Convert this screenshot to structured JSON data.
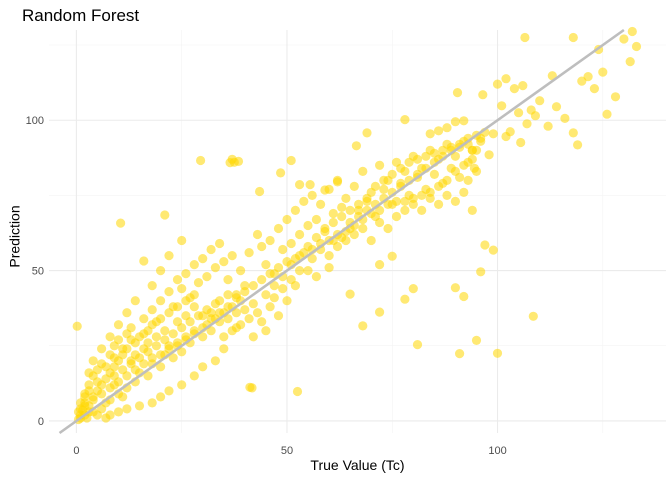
{
  "chart_data": {
    "type": "scatter",
    "title": "Random Forest",
    "xlabel": "True Value (Tc)",
    "ylabel": "Prediction",
    "xlim": [
      -6.5,
      140
    ],
    "ylim": [
      -4,
      130
    ],
    "xticks": [
      0,
      50,
      100
    ],
    "yticks": [
      0,
      50,
      100
    ],
    "grid": true,
    "point_color": "#FFD700",
    "line_color": "#BEBEBE",
    "reference_line": {
      "slope": 1,
      "intercept": 0
    },
    "points": [
      [
        0.2,
        31.5
      ],
      [
        10.5,
        65.8
      ],
      [
        21,
        68.5
      ],
      [
        16,
        53.2
      ],
      [
        29.5,
        86.6
      ],
      [
        36.5,
        85.9
      ],
      [
        37.5,
        86.0
      ],
      [
        38.5,
        86.3
      ],
      [
        37,
        87.0
      ],
      [
        41.7,
        11.0
      ],
      [
        41.2,
        11.2
      ],
      [
        52.5,
        9.8
      ],
      [
        48.5,
        82.5
      ],
      [
        43.5,
        76.3
      ],
      [
        51,
        86.6
      ],
      [
        53,
        78.6
      ],
      [
        55.5,
        78.6
      ],
      [
        59,
        76.8
      ],
      [
        66.5,
        91.5
      ],
      [
        78,
        100.2
      ],
      [
        69,
        95.8
      ],
      [
        62,
        79.5
      ],
      [
        84,
        95.5
      ],
      [
        88,
        97.5
      ],
      [
        90,
        99.5
      ],
      [
        92,
        99.8
      ],
      [
        86,
        96.5
      ],
      [
        81,
        25.4
      ],
      [
        91,
        22.4
      ],
      [
        95,
        26.8
      ],
      [
        90,
        44.3
      ],
      [
        92,
        41.4
      ],
      [
        96,
        49.6
      ],
      [
        97,
        58.5
      ],
      [
        99,
        56.8
      ],
      [
        72,
        52.0
      ],
      [
        60,
        51.0
      ],
      [
        75,
        54.8
      ],
      [
        65,
        42.2
      ],
      [
        72,
        36.2
      ],
      [
        68,
        31.6
      ],
      [
        78,
        40.5
      ],
      [
        80,
        44.0
      ],
      [
        90.5,
        109.2
      ],
      [
        96.5,
        108.5
      ],
      [
        101,
        104.8
      ],
      [
        104,
        110.5
      ],
      [
        106,
        111.5
      ],
      [
        106.5,
        127.5
      ],
      [
        105.5,
        92.6
      ],
      [
        103,
        96.2
      ],
      [
        108,
        103.4
      ],
      [
        110,
        106.5
      ],
      [
        112,
        98.0
      ],
      [
        113,
        114.8
      ],
      [
        114,
        104.5
      ],
      [
        116,
        100.6
      ],
      [
        118,
        95.8
      ],
      [
        119,
        91.8
      ],
      [
        120,
        113.0
      ],
      [
        121.5,
        114.5
      ],
      [
        123,
        110.5
      ],
      [
        124,
        123.5
      ],
      [
        125,
        116.0
      ],
      [
        126,
        102.0
      ],
      [
        128,
        107.8
      ],
      [
        118,
        127.5
      ],
      [
        130,
        127.0
      ],
      [
        132,
        129.5
      ],
      [
        133,
        124.5
      ],
      [
        131.5,
        119.5
      ],
      [
        108.5,
        34.8
      ],
      [
        100,
        22.5
      ],
      [
        94.5,
        84.0
      ],
      [
        96,
        93.0
      ],
      [
        99,
        95.5
      ],
      [
        102,
        94.6
      ],
      [
        105,
        102.5
      ],
      [
        107,
        98.8
      ],
      [
        109,
        101.5
      ],
      [
        100,
        112.0
      ],
      [
        102,
        113.8
      ],
      [
        98,
        88.5
      ],
      [
        94,
        90.0
      ],
      [
        93,
        80.0
      ],
      [
        5,
        2
      ],
      [
        6,
        4
      ],
      [
        8,
        7
      ],
      [
        10,
        9
      ],
      [
        12,
        11
      ],
      [
        3,
        5
      ],
      [
        4,
        3
      ],
      [
        7,
        6
      ],
      [
        9,
        12
      ],
      [
        11,
        8
      ],
      [
        14,
        13
      ],
      [
        15,
        16
      ],
      [
        17,
        15
      ],
      [
        18,
        19
      ],
      [
        20,
        18
      ],
      [
        21,
        22
      ],
      [
        23,
        21
      ],
      [
        24,
        25
      ],
      [
        25,
        23
      ],
      [
        26,
        27
      ],
      [
        27,
        26
      ],
      [
        28,
        29
      ],
      [
        30,
        28
      ],
      [
        31,
        32
      ],
      [
        32,
        30
      ],
      [
        33,
        34
      ],
      [
        34,
        33
      ],
      [
        35,
        36
      ],
      [
        36,
        34
      ],
      [
        37,
        38
      ],
      [
        38,
        36
      ],
      [
        39,
        40
      ],
      [
        40,
        37
      ],
      [
        2,
        8
      ],
      [
        3,
        12
      ],
      [
        4,
        15
      ],
      [
        5,
        17
      ],
      [
        6,
        19
      ],
      [
        8,
        22
      ],
      [
        9,
        25
      ],
      [
        10,
        27
      ],
      [
        12,
        29
      ],
      [
        13,
        31
      ],
      [
        14,
        26
      ],
      [
        16,
        34
      ],
      [
        17,
        30
      ],
      [
        18,
        37
      ],
      [
        19,
        33
      ],
      [
        20,
        40
      ],
      [
        22,
        43
      ],
      [
        23,
        38
      ],
      [
        24,
        47
      ],
      [
        25,
        44
      ],
      [
        26,
        49
      ],
      [
        27,
        41
      ],
      [
        28,
        52
      ],
      [
        29,
        46
      ],
      [
        30,
        54
      ],
      [
        31,
        48
      ],
      [
        32,
        57
      ],
      [
        33,
        51
      ],
      [
        34,
        59
      ],
      [
        35,
        53
      ],
      [
        36,
        47
      ],
      [
        37,
        55
      ],
      [
        38,
        42
      ],
      [
        39,
        50
      ],
      [
        40,
        45
      ],
      [
        41,
        56
      ],
      [
        42,
        39
      ],
      [
        43,
        62
      ],
      [
        44,
        58
      ],
      [
        45,
        52
      ],
      [
        46,
        60
      ],
      [
        47,
        49
      ],
      [
        48,
        64
      ],
      [
        49,
        57
      ],
      [
        50,
        67
      ],
      [
        51,
        59
      ],
      [
        52,
        70
      ],
      [
        53,
        62
      ],
      [
        54,
        73
      ],
      [
        55,
        65
      ],
      [
        56,
        75
      ],
      [
        57,
        67
      ],
      [
        58,
        72
      ],
      [
        59,
        63
      ],
      [
        60,
        77
      ],
      [
        61,
        69
      ],
      [
        62,
        80
      ],
      [
        63,
        71
      ],
      [
        64,
        74
      ],
      [
        65,
        66
      ],
      [
        66,
        78
      ],
      [
        67,
        70
      ],
      [
        68,
        83
      ],
      [
        69,
        73
      ],
      [
        70,
        76
      ],
      [
        71,
        68
      ],
      [
        72,
        85
      ],
      [
        73,
        77
      ],
      [
        74,
        80
      ],
      [
        75,
        72
      ],
      [
        76,
        86
      ],
      [
        77,
        79
      ],
      [
        78,
        83
      ],
      [
        79,
        75
      ],
      [
        80,
        88
      ],
      [
        81,
        81
      ],
      [
        82,
        84
      ],
      [
        83,
        77
      ],
      [
        84,
        90
      ],
      [
        85,
        82
      ],
      [
        86,
        87
      ],
      [
        87,
        79
      ],
      [
        88,
        92
      ],
      [
        89,
        84
      ],
      [
        90,
        88
      ],
      [
        91,
        81
      ],
      [
        92,
        93
      ],
      [
        93,
        86
      ],
      [
        94,
        90
      ],
      [
        95,
        83
      ],
      [
        96,
        94
      ],
      [
        45,
        30
      ],
      [
        48,
        35
      ],
      [
        50,
        40
      ],
      [
        52,
        45
      ],
      [
        55,
        50
      ],
      [
        57,
        48
      ],
      [
        60,
        55
      ],
      [
        62,
        58
      ],
      [
        64,
        60
      ],
      [
        66,
        62
      ],
      [
        68,
        64
      ],
      [
        70,
        60
      ],
      [
        72,
        66
      ],
      [
        74,
        64
      ],
      [
        76,
        68
      ],
      [
        78,
        70
      ],
      [
        80,
        72
      ],
      [
        82,
        70
      ],
      [
        84,
        74
      ],
      [
        86,
        72
      ],
      [
        88,
        75
      ],
      [
        90,
        73
      ],
      [
        92,
        76
      ],
      [
        94,
        70
      ],
      [
        1,
        1
      ],
      [
        2,
        2
      ],
      [
        1,
        4
      ],
      [
        2,
        6
      ],
      [
        3,
        3
      ],
      [
        0.5,
        0.5
      ],
      [
        1.5,
        3.5
      ],
      [
        2.5,
        1
      ],
      [
        4,
        8
      ],
      [
        5,
        10
      ],
      [
        6,
        12
      ],
      [
        7,
        14
      ],
      [
        8,
        16
      ],
      [
        9,
        18
      ],
      [
        10,
        20
      ],
      [
        11,
        22
      ],
      [
        12,
        24
      ],
      [
        13,
        20
      ],
      [
        14,
        22
      ],
      [
        15,
        28
      ],
      [
        16,
        24
      ],
      [
        17,
        26
      ],
      [
        19,
        28
      ],
      [
        21,
        30
      ],
      [
        22,
        25
      ],
      [
        24,
        33
      ],
      [
        26,
        35
      ],
      [
        28,
        38
      ],
      [
        30,
        35
      ],
      [
        32,
        36
      ],
      [
        34,
        40
      ],
      [
        36,
        42
      ],
      [
        38,
        31
      ],
      [
        35,
        24
      ],
      [
        33,
        20
      ],
      [
        30,
        18
      ],
      [
        28,
        15
      ],
      [
        25,
        12
      ],
      [
        22,
        10
      ],
      [
        20,
        8
      ],
      [
        18,
        6
      ],
      [
        15,
        5
      ],
      [
        12,
        4
      ],
      [
        10,
        3
      ],
      [
        8,
        2
      ],
      [
        7,
        1
      ],
      [
        42,
        28
      ],
      [
        44,
        33
      ],
      [
        46,
        38
      ],
      [
        47,
        41
      ],
      [
        49,
        44
      ],
      [
        51,
        47
      ],
      [
        53,
        50
      ],
      [
        56,
        54
      ],
      [
        58,
        57
      ],
      [
        61,
        60
      ],
      [
        63,
        61
      ],
      [
        65,
        64
      ],
      [
        67,
        68
      ],
      [
        69,
        70
      ],
      [
        71,
        72
      ],
      [
        73,
        74
      ],
      [
        75,
        76
      ],
      [
        77,
        78
      ],
      [
        79,
        80
      ],
      [
        81,
        82
      ],
      [
        83,
        84
      ],
      [
        85,
        86
      ],
      [
        87,
        88
      ],
      [
        89,
        90
      ],
      [
        91,
        91
      ],
      [
        93,
        92
      ],
      [
        95,
        95
      ],
      [
        97,
        96
      ],
      [
        8,
        28
      ],
      [
        10,
        32
      ],
      [
        12,
        36
      ],
      [
        14,
        40
      ],
      [
        6,
        24
      ],
      [
        4,
        20
      ],
      [
        3,
        16
      ],
      [
        18,
        45
      ],
      [
        20,
        50
      ],
      [
        22,
        55
      ],
      [
        25,
        60
      ],
      [
        9,
        15
      ],
      [
        11,
        17
      ],
      [
        13,
        19
      ],
      [
        15,
        21
      ],
      [
        17,
        23
      ],
      [
        19,
        25
      ],
      [
        21,
        27
      ],
      [
        23,
        29
      ],
      [
        25,
        31
      ],
      [
        27,
        33
      ],
      [
        29,
        35
      ],
      [
        31,
        37
      ],
      [
        33,
        39
      ],
      [
        35,
        28
      ],
      [
        37,
        30
      ],
      [
        39,
        32
      ],
      [
        41,
        34
      ],
      [
        43,
        36
      ],
      [
        45,
        42
      ],
      [
        47,
        45
      ],
      [
        49,
        48
      ],
      [
        51,
        52
      ],
      [
        53,
        55
      ],
      [
        55,
        58
      ],
      [
        57,
        61
      ],
      [
        59,
        64
      ],
      [
        61,
        66
      ],
      [
        63,
        68
      ],
      [
        65,
        70
      ],
      [
        67,
        72
      ],
      [
        69,
        74
      ],
      [
        71,
        78
      ],
      [
        73,
        80
      ],
      [
        75,
        82
      ],
      [
        77,
        84
      ],
      [
        79,
        86
      ],
      [
        81,
        87
      ],
      [
        83,
        88
      ],
      [
        85,
        89
      ],
      [
        87,
        90
      ],
      [
        89,
        91
      ],
      [
        91,
        92
      ],
      [
        93,
        94
      ],
      [
        95,
        90
      ],
      [
        94,
        87
      ],
      [
        92,
        85
      ],
      [
        90,
        83
      ],
      [
        88,
        80
      ],
      [
        86,
        78
      ],
      [
        84,
        76
      ],
      [
        82,
        75
      ],
      [
        80,
        74
      ],
      [
        78,
        73
      ],
      [
        76,
        73
      ],
      [
        74,
        72
      ],
      [
        72,
        70
      ],
      [
        70,
        69
      ],
      [
        68,
        67
      ],
      [
        66,
        65
      ],
      [
        64,
        63
      ],
      [
        62,
        62
      ],
      [
        60,
        60
      ],
      [
        58,
        59
      ],
      [
        56,
        57
      ],
      [
        54,
        56
      ],
      [
        52,
        54
      ],
      [
        50,
        53
      ],
      [
        48,
        51
      ],
      [
        46,
        49
      ],
      [
        44,
        47
      ],
      [
        42,
        45
      ],
      [
        40,
        43
      ],
      [
        38,
        41
      ],
      [
        36,
        38
      ],
      [
        34,
        36
      ],
      [
        32,
        34
      ],
      [
        30,
        31
      ],
      [
        28,
        30
      ],
      [
        26,
        28
      ],
      [
        24,
        26
      ],
      [
        22,
        24
      ],
      [
        20,
        22
      ],
      [
        18,
        21
      ],
      [
        16,
        19
      ],
      [
        14,
        17
      ],
      [
        12,
        15
      ],
      [
        10,
        13
      ],
      [
        8,
        11
      ],
      [
        6,
        9
      ],
      [
        4,
        7
      ],
      [
        2,
        5
      ],
      [
        1,
        2
      ],
      [
        0.5,
        3
      ],
      [
        1,
        6
      ],
      [
        2,
        9
      ],
      [
        3,
        10
      ],
      [
        5,
        13
      ],
      [
        7,
        18
      ],
      [
        9,
        21
      ],
      [
        11,
        24
      ],
      [
        13,
        27
      ],
      [
        16,
        29
      ],
      [
        18,
        32
      ],
      [
        20,
        34
      ],
      [
        22,
        36
      ],
      [
        24,
        38
      ],
      [
        26,
        40
      ],
      [
        28,
        42
      ]
    ]
  }
}
